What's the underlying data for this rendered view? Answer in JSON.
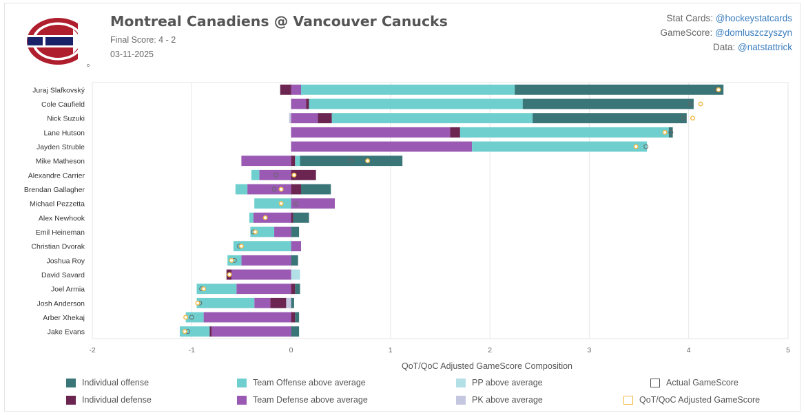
{
  "header": {
    "title": "Montreal Canadiens @ Vancouver Canucks",
    "final_score": "Final Score: 4 - 2",
    "date": "03-11-2025"
  },
  "credits": [
    {
      "label": "Stat Cards: ",
      "handle": "@hockeystatcards"
    },
    {
      "label": "GameScore: ",
      "handle": "@domluszczyszyn"
    },
    {
      "label": "Data: ",
      "handle": "@natstattrick"
    }
  ],
  "colors": {
    "individual_offense": "#3a7577",
    "individual_defense": "#6b2550",
    "team_offense": "#6fcfcf",
    "team_defense": "#9a5ab4",
    "pp": "#b3dfe6",
    "pk": "#c5c7e0",
    "logo_red": "#af1e2d",
    "logo_blue": "#192168",
    "adjusted_marker": "#f4b842"
  },
  "legend": {
    "individual_offense": "Individual offense",
    "individual_defense": "Individual defense",
    "team_offense": "Team Offense above average",
    "team_defense": "Team Defense above average",
    "pp": "PP above average",
    "pk": "PK above average",
    "actual": "Actual GameScore",
    "adjusted": "QoT/QoC Adjusted GameScore"
  },
  "chart_data": {
    "type": "bar",
    "orientation": "horizontal-stacked",
    "xlabel": "QoT/QoC Adjusted GameScore Composition",
    "xlim": [
      -2,
      5
    ],
    "xticks": [
      -2,
      -1,
      0,
      1,
      2,
      3,
      4,
      5
    ],
    "grid": true,
    "legend_position": "bottom",
    "players": [
      {
        "name": "Juraj Slafkovský",
        "pos": [
          [
            "team_defense",
            0.1
          ],
          [
            "team_offense",
            2.15
          ],
          [
            "individual_offense",
            2.1
          ]
        ],
        "neg": [
          [
            "individual_defense",
            -0.11
          ]
        ],
        "actual": 4.28,
        "adjusted": 4.3
      },
      {
        "name": "Cole Caufield",
        "pos": [
          [
            "team_defense",
            0.15
          ],
          [
            "individual_defense",
            0.03
          ],
          [
            "team_offense",
            2.15
          ],
          [
            "individual_offense",
            1.72
          ]
        ],
        "neg": [],
        "actual": 4.02,
        "adjusted": 4.12
      },
      {
        "name": "Nick Suzuki",
        "pos": [
          [
            "team_defense",
            0.27
          ],
          [
            "individual_defense",
            0.14
          ],
          [
            "team_offense",
            2.02
          ],
          [
            "individual_offense",
            1.55
          ]
        ],
        "neg": [
          [
            "pk",
            -0.02
          ]
        ],
        "actual": 3.95,
        "adjusted": 4.04
      },
      {
        "name": "Lane Hutson",
        "pos": [
          [
            "team_defense",
            1.6
          ],
          [
            "individual_defense",
            0.1
          ],
          [
            "team_offense",
            2.1
          ],
          [
            "individual_offense",
            0.04
          ]
        ],
        "neg": [],
        "actual": 3.82,
        "adjusted": 3.76
      },
      {
        "name": "Jayden Struble",
        "pos": [
          [
            "team_defense",
            1.82
          ],
          [
            "team_offense",
            1.76
          ]
        ],
        "neg": [],
        "actual": 3.57,
        "adjusted": 3.47
      },
      {
        "name": "Mike Matheson",
        "pos": [
          [
            "individual_defense",
            0.04
          ],
          [
            "team_offense",
            0.05
          ],
          [
            "individual_offense",
            1.03
          ]
        ],
        "neg": [
          [
            "team_defense",
            -0.5
          ]
        ],
        "actual": 0.6,
        "adjusted": 0.77
      },
      {
        "name": "Alexandre Carrier",
        "pos": [
          [
            "individual_defense",
            0.25
          ]
        ],
        "neg": [
          [
            "team_defense",
            -0.32
          ],
          [
            "team_offense",
            -0.08
          ]
        ],
        "actual": -0.15,
        "adjusted": 0.03
      },
      {
        "name": "Brendan Gallagher",
        "pos": [
          [
            "individual_defense",
            0.1
          ],
          [
            "individual_offense",
            0.3
          ]
        ],
        "neg": [
          [
            "team_defense",
            -0.44
          ],
          [
            "team_offense",
            -0.12
          ]
        ],
        "actual": -0.17,
        "adjusted": -0.1
      },
      {
        "name": "Michael Pezzetta",
        "pos": [
          [
            "team_defense",
            0.44
          ]
        ],
        "neg": [
          [
            "team_offense",
            -0.37
          ]
        ],
        "actual": 0.05,
        "adjusted": -0.1
      },
      {
        "name": "Alex Newhook",
        "pos": [
          [
            "individual_defense",
            0.02
          ],
          [
            "individual_offense",
            0.16
          ]
        ],
        "neg": [
          [
            "team_defense",
            -0.38
          ],
          [
            "team_offense",
            -0.04
          ]
        ],
        "actual": -0.26,
        "adjusted": -0.26
      },
      {
        "name": "Emil Heineman",
        "pos": [
          [
            "individual_offense",
            0.08
          ]
        ],
        "neg": [
          [
            "team_defense",
            -0.17
          ],
          [
            "team_offense",
            -0.24
          ]
        ],
        "actual": -0.38,
        "adjusted": -0.36
      },
      {
        "name": "Christian Dvorak",
        "pos": [
          [
            "team_defense",
            0.1
          ]
        ],
        "neg": [
          [
            "team_offense",
            -0.58
          ]
        ],
        "actual": -0.52,
        "adjusted": -0.5
      },
      {
        "name": "Joshua Roy",
        "pos": [
          [
            "individual_offense",
            0.07
          ]
        ],
        "neg": [
          [
            "team_defense",
            -0.5
          ],
          [
            "team_offense",
            -0.14
          ]
        ],
        "actual": -0.57,
        "adjusted": -0.6
      },
      {
        "name": "David Savard",
        "pos": [
          [
            "pp",
            0.09
          ]
        ],
        "neg": [
          [
            "team_defense",
            -0.6
          ],
          [
            "individual_defense",
            -0.05
          ]
        ],
        "actual": -0.62,
        "adjusted": -0.62
      },
      {
        "name": "Joel Armia",
        "pos": [
          [
            "individual_defense",
            0.04
          ],
          [
            "individual_offense",
            0.05
          ]
        ],
        "neg": [
          [
            "team_defense",
            -0.55
          ],
          [
            "team_offense",
            -0.4
          ]
        ],
        "actual": -0.9,
        "adjusted": -0.88
      },
      {
        "name": "Josh Anderson",
        "pos": [
          [
            "individual_offense",
            0.03
          ]
        ],
        "neg": [
          [
            "pk",
            -0.05
          ],
          [
            "individual_defense",
            -0.16
          ],
          [
            "team_defense",
            -0.16
          ],
          [
            "team_offense",
            -0.58
          ]
        ],
        "actual": -0.92,
        "adjusted": -0.94
      },
      {
        "name": "Arber Xhekaj",
        "pos": [
          [
            "individual_defense",
            0.04
          ],
          [
            "individual_offense",
            0.04
          ]
        ],
        "neg": [
          [
            "team_defense",
            -0.88
          ],
          [
            "team_offense",
            -0.18
          ]
        ],
        "actual": -1.0,
        "adjusted": -1.06
      },
      {
        "name": "Jake Evans",
        "pos": [
          [
            "individual_offense",
            0.08
          ]
        ],
        "neg": [
          [
            "team_defense",
            -0.8
          ],
          [
            "individual_defense",
            -0.02
          ],
          [
            "team_offense",
            -0.3
          ]
        ],
        "actual": -1.04,
        "adjusted": -1.07
      }
    ]
  }
}
